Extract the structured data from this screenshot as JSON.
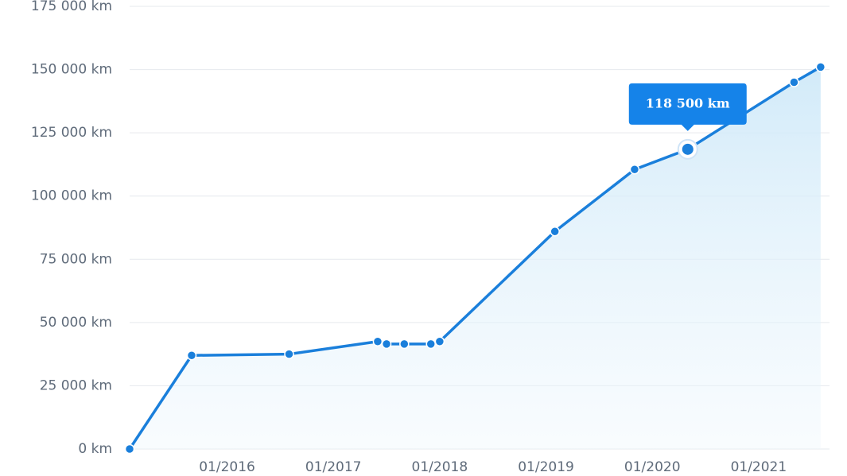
{
  "chart_data": {
    "type": "area-line",
    "x": [
      "2015-02",
      "2015-09",
      "2016-08",
      "2017-06",
      "2017-07",
      "2017-09",
      "2017-12",
      "2018-01",
      "2019-02",
      "2019-11",
      "2020-05",
      "2021-05",
      "2021-08"
    ],
    "series": [
      {
        "color": "#1a7fdb",
        "values": [
          0,
          37000,
          37500,
          42500,
          41500,
          41500,
          41500,
          42500,
          86000,
          110500,
          118500,
          145000,
          151000
        ],
        "value_labels": [
          null,
          null,
          null,
          null,
          null,
          null,
          null,
          null,
          null,
          null,
          "118 500 km",
          null,
          null
        ]
      }
    ],
    "xlim": [
      "2015-02",
      "2021-09"
    ],
    "xticks": [
      {
        "value": "2016-01",
        "label": "01/2016"
      },
      {
        "value": "2017-01",
        "label": "01/2017"
      },
      {
        "value": "2018-01",
        "label": "01/2018"
      },
      {
        "value": "2019-01",
        "label": "01/2019"
      },
      {
        "value": "2020-01",
        "label": "01/2020"
      },
      {
        "value": "2021-01",
        "label": "01/2021"
      }
    ],
    "ylim": [
      0,
      175000
    ],
    "yticks": [
      {
        "value": 0,
        "label": "0 km"
      },
      {
        "value": 25000,
        "label": "25 000 km"
      },
      {
        "value": 50000,
        "label": "50 000 km"
      },
      {
        "value": 75000,
        "label": "75 000 km"
      },
      {
        "value": 100000,
        "label": "100 000 km"
      },
      {
        "value": 125000,
        "label": "125 000 km"
      },
      {
        "value": 150000,
        "label": "150 000 km"
      },
      {
        "value": 175000,
        "label": "175 000 km"
      }
    ],
    "grid": true
  }
}
